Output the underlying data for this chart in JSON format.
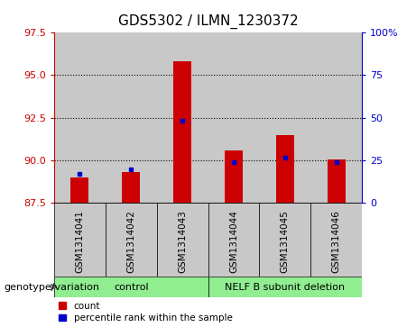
{
  "title": "GDS5302 / ILMN_1230372",
  "samples": [
    "GSM1314041",
    "GSM1314042",
    "GSM1314043",
    "GSM1314044",
    "GSM1314045",
    "GSM1314046"
  ],
  "red_values": [
    89.0,
    89.3,
    95.8,
    90.6,
    91.5,
    90.05
  ],
  "blue_values": [
    89.2,
    89.45,
    92.35,
    89.88,
    90.15,
    89.9
  ],
  "ylim_left": [
    87.5,
    97.5
  ],
  "ylim_right": [
    0,
    100
  ],
  "yticks_left": [
    87.5,
    90.0,
    92.5,
    95.0,
    97.5
  ],
  "yticks_right": [
    0,
    25,
    50,
    75,
    100
  ],
  "ytick_labels_right": [
    "0",
    "25",
    "50",
    "75",
    "100%"
  ],
  "group1_label": "control",
  "group2_label": "NELF B subunit deletion",
  "group1_indices": [
    0,
    1,
    2
  ],
  "group2_indices": [
    3,
    4,
    5
  ],
  "group_row_label": "genotype/variation",
  "legend_red": "count",
  "legend_blue": "percentile rank within the sample",
  "bar_color": "#cc0000",
  "dot_color": "#0000cc",
  "left_axis_color": "#cc0000",
  "right_axis_color": "#0000cc",
  "group_bg": "#90ee90",
  "sample_bg": "#c8c8c8",
  "plot_bg": "#ffffff",
  "bar_width": 0.35
}
